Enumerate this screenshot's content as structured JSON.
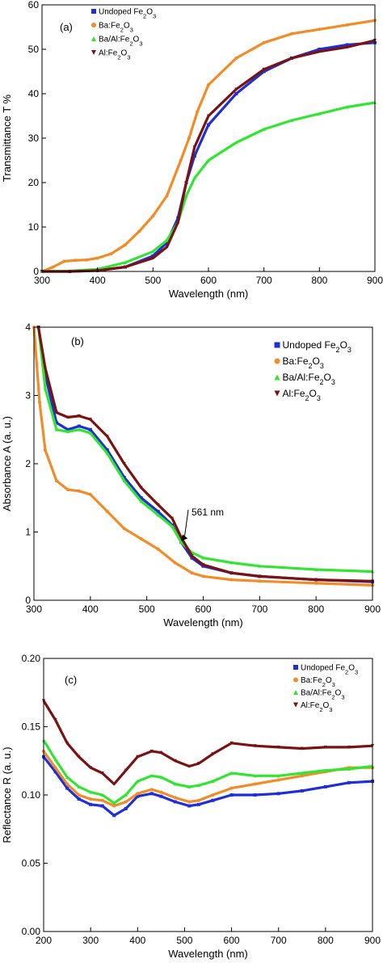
{
  "chart_data": [
    {
      "type": "line",
      "panel_label": "(a)",
      "xlabel": "Wavelength (nm)",
      "ylabel": "Transmittance T %",
      "xlim": [
        300,
        900
      ],
      "ylim": [
        0,
        60
      ],
      "xticks": [
        "300",
        "400",
        "500",
        "600",
        "700",
        "800",
        "900"
      ],
      "yticks": [
        "0",
        "10",
        "20",
        "30",
        "40",
        "50",
        "60"
      ],
      "legend": "top-left",
      "series": [
        {
          "name": "Undoped Fe2O3",
          "color": "#1f2fd6",
          "marker": "square",
          "x": [
            300,
            350,
            400,
            450,
            500,
            525,
            545,
            560,
            575,
            600,
            650,
            700,
            750,
            800,
            850,
            900
          ],
          "y": [
            0,
            0,
            0.2,
            1,
            3.5,
            6.5,
            12,
            20,
            26,
            33,
            40,
            45,
            48,
            50,
            51,
            51.5
          ]
        },
        {
          "name": "Ba:Fe2O3",
          "color": "#f28c28",
          "marker": "circle",
          "x": [
            300,
            320,
            340,
            360,
            380,
            400,
            425,
            450,
            475,
            500,
            525,
            550,
            565,
            580,
            600,
            650,
            700,
            750,
            800,
            850,
            900
          ],
          "y": [
            0,
            1,
            2.3,
            2.5,
            2.6,
            3,
            4,
            6,
            9,
            12.5,
            17,
            25,
            30,
            36,
            42,
            48,
            51.5,
            53.5,
            54.5,
            55.5,
            56.5
          ]
        },
        {
          "name": "Ba/Al:Fe2O3",
          "color": "#33e533",
          "marker": "triangle-up",
          "x": [
            300,
            350,
            400,
            450,
            500,
            525,
            545,
            560,
            575,
            600,
            650,
            700,
            750,
            800,
            850,
            900
          ],
          "y": [
            0,
            0.1,
            0.5,
            2,
            4.5,
            7,
            11,
            17,
            21,
            25,
            29,
            32,
            34,
            35.5,
            37,
            38
          ]
        },
        {
          "name": "Al:Fe2O3",
          "color": "#7a1212",
          "marker": "triangle-down",
          "x": [
            300,
            350,
            400,
            450,
            500,
            525,
            545,
            560,
            575,
            600,
            650,
            700,
            750,
            800,
            850,
            900
          ],
          "y": [
            0,
            0,
            0.2,
            1,
            3,
            5.5,
            11,
            20,
            28,
            35,
            41,
            45.5,
            48,
            49.5,
            50.5,
            52
          ]
        }
      ]
    },
    {
      "type": "line",
      "panel_label": "(b)",
      "xlabel": "Wavelength (nm)",
      "ylabel": "Absorbance A (a. u.)",
      "xlim": [
        300,
        900
      ],
      "ylim": [
        0,
        4
      ],
      "xticks": [
        "300",
        "400",
        "500",
        "600",
        "700",
        "800",
        "900"
      ],
      "yticks": [
        "0",
        "1",
        "2",
        "3",
        "4"
      ],
      "legend": "top-right",
      "annotation": "561 nm",
      "series": [
        {
          "name": "Undoped Fe2O3",
          "color": "#1f2fd6",
          "marker": "square",
          "x": [
            308,
            320,
            340,
            360,
            380,
            400,
            430,
            460,
            490,
            520,
            545,
            561,
            580,
            600,
            650,
            700,
            800,
            900
          ],
          "y": [
            4,
            3.3,
            2.6,
            2.5,
            2.55,
            2.5,
            2.2,
            1.8,
            1.5,
            1.3,
            1.1,
            0.85,
            0.62,
            0.5,
            0.4,
            0.35,
            0.3,
            0.27
          ]
        },
        {
          "name": "Ba:Fe2O3",
          "color": "#f28c28",
          "marker": "circle",
          "x": [
            300,
            310,
            320,
            340,
            360,
            380,
            400,
            430,
            460,
            490,
            520,
            550,
            580,
            600,
            650,
            700,
            800,
            900
          ],
          "y": [
            4,
            2.9,
            2.2,
            1.75,
            1.62,
            1.6,
            1.55,
            1.3,
            1.05,
            0.9,
            0.75,
            0.55,
            0.4,
            0.35,
            0.3,
            0.28,
            0.25,
            0.22
          ]
        },
        {
          "name": "Ba/Al:Fe2O3",
          "color": "#33e533",
          "marker": "triangle-up",
          "x": [
            308,
            320,
            340,
            360,
            380,
            400,
            430,
            460,
            490,
            520,
            545,
            561,
            580,
            600,
            650,
            700,
            800,
            900
          ],
          "y": [
            4,
            3.1,
            2.5,
            2.47,
            2.5,
            2.45,
            2.15,
            1.75,
            1.45,
            1.25,
            1.08,
            0.85,
            0.7,
            0.62,
            0.55,
            0.5,
            0.45,
            0.42
          ]
        },
        {
          "name": "Al:Fe2O3",
          "color": "#7a1212",
          "marker": "triangle-down",
          "x": [
            308,
            320,
            340,
            360,
            380,
            400,
            430,
            460,
            490,
            520,
            545,
            561,
            580,
            600,
            650,
            700,
            800,
            900
          ],
          "y": [
            4,
            3.4,
            2.75,
            2.68,
            2.7,
            2.65,
            2.4,
            2.0,
            1.65,
            1.4,
            1.2,
            0.92,
            0.65,
            0.52,
            0.4,
            0.35,
            0.3,
            0.28
          ]
        }
      ]
    },
    {
      "type": "line",
      "panel_label": "(c)",
      "xlabel": "Wavelength (nm)",
      "ylabel": "Reflectance R (a. u.)",
      "xlim": [
        200,
        900
      ],
      "ylim": [
        0,
        0.2
      ],
      "xticks": [
        "200",
        "300",
        "400",
        "500",
        "600",
        "700",
        "800",
        "900"
      ],
      "yticks": [
        "0.00",
        "0.05",
        "0.10",
        "0.15",
        "0.20"
      ],
      "legend": "top-right",
      "series": [
        {
          "name": "Undoped Fe2O3",
          "color": "#1f2fd6",
          "marker": "square",
          "x": [
            200,
            225,
            250,
            275,
            300,
            325,
            350,
            375,
            400,
            430,
            450,
            480,
            510,
            530,
            560,
            600,
            650,
            700,
            750,
            800,
            850,
            900
          ],
          "y": [
            0.128,
            0.117,
            0.105,
            0.097,
            0.093,
            0.092,
            0.085,
            0.09,
            0.099,
            0.101,
            0.099,
            0.095,
            0.092,
            0.093,
            0.096,
            0.1,
            0.1,
            0.101,
            0.103,
            0.106,
            0.109,
            0.11
          ]
        },
        {
          "name": "Ba:Fe2O3",
          "color": "#f28c28",
          "marker": "circle",
          "x": [
            200,
            225,
            250,
            275,
            300,
            325,
            350,
            375,
            400,
            430,
            450,
            480,
            510,
            530,
            560,
            600,
            650,
            700,
            750,
            800,
            850,
            900
          ],
          "y": [
            0.132,
            0.12,
            0.108,
            0.1,
            0.097,
            0.096,
            0.092,
            0.095,
            0.101,
            0.104,
            0.102,
            0.098,
            0.095,
            0.096,
            0.1,
            0.105,
            0.108,
            0.111,
            0.114,
            0.117,
            0.12,
            0.12
          ]
        },
        {
          "name": "Ba/Al:Fe2O3",
          "color": "#33e533",
          "marker": "triangle-up",
          "x": [
            200,
            225,
            250,
            275,
            300,
            325,
            350,
            375,
            400,
            430,
            450,
            480,
            510,
            530,
            560,
            600,
            650,
            700,
            750,
            800,
            850,
            900
          ],
          "y": [
            0.14,
            0.126,
            0.113,
            0.106,
            0.102,
            0.1,
            0.094,
            0.1,
            0.11,
            0.114,
            0.113,
            0.108,
            0.106,
            0.107,
            0.11,
            0.116,
            0.114,
            0.114,
            0.116,
            0.118,
            0.119,
            0.121
          ]
        },
        {
          "name": "Al:Fe2O3",
          "color": "#7a1212",
          "marker": "triangle-down",
          "x": [
            200,
            225,
            250,
            275,
            300,
            325,
            350,
            375,
            400,
            430,
            450,
            480,
            510,
            530,
            560,
            600,
            650,
            700,
            750,
            800,
            850,
            900
          ],
          "y": [
            0.169,
            0.155,
            0.138,
            0.128,
            0.12,
            0.116,
            0.108,
            0.118,
            0.128,
            0.132,
            0.131,
            0.125,
            0.121,
            0.123,
            0.13,
            0.138,
            0.136,
            0.135,
            0.134,
            0.135,
            0.135,
            0.136
          ]
        }
      ]
    }
  ]
}
